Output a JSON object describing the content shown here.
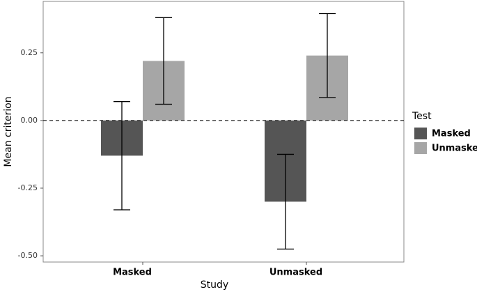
{
  "chart_data": {
    "type": "bar",
    "x_label": "Study",
    "y_label": "Mean criterion",
    "categories": [
      "Masked",
      "Unmasked"
    ],
    "series": [
      {
        "name": "Masked",
        "color": "#555555",
        "values": [
          -0.13,
          -0.3
        ],
        "errors": [
          0.2,
          0.175
        ]
      },
      {
        "name": "Unmasked",
        "color": "#a6a6a6",
        "values": [
          0.22,
          0.24
        ],
        "errors": [
          0.16,
          0.155
        ]
      }
    ],
    "legend_title": "Test",
    "legend_position": "right",
    "ylim": [
      -0.523,
      0.44
    ],
    "yticks": [
      0.25,
      {
        "value": 0,
        "label": "0.00"
      },
      -0.25,
      {
        "value": -0.5,
        "label": "-0.50"
      }
    ],
    "hline": 0,
    "grid": false
  }
}
